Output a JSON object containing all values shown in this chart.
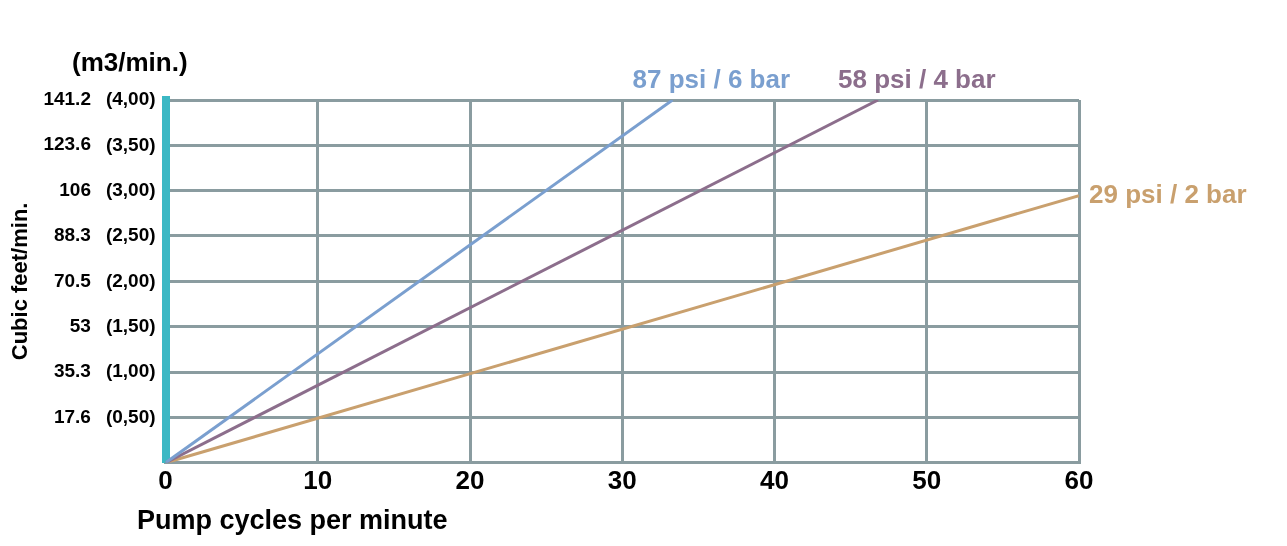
{
  "chart_data": {
    "type": "line",
    "ylabel": "Cubic feet/min.",
    "y2label": "(m3/min.)",
    "xlabel": "Pump cycles per minute",
    "xlim": [
      0,
      60
    ],
    "xticks": [
      0,
      10,
      20,
      30,
      40,
      50,
      60
    ],
    "ylim": [
      0,
      141.2
    ],
    "yticks": [
      17.6,
      35.3,
      53,
      70.5,
      88.3,
      106,
      123.6,
      141.2
    ],
    "y2lim": [
      0,
      4
    ],
    "y2ticks": [
      {
        "value": 0.5,
        "label": "(0,50)"
      },
      {
        "value": 1,
        "label": "(1,00)"
      },
      {
        "value": 1.5,
        "label": "(1,50)"
      },
      {
        "value": 2,
        "label": "(2,00)"
      },
      {
        "value": 2.5,
        "label": "(2,50)"
      },
      {
        "value": 3,
        "label": "(3,00)"
      },
      {
        "value": 3.5,
        "label": "(3,50)"
      },
      {
        "value": 4,
        "label": "(4,00)"
      }
    ],
    "grid": true,
    "legend": false,
    "marker": "none",
    "line_style": "solid",
    "series": [
      {
        "name": "87 psi / 6 bar",
        "color": "#7a9fcf",
        "x": [
          0,
          33.3
        ],
        "values": [
          0,
          141.2
        ]
      },
      {
        "name": "58 psi / 4 bar",
        "color": "#8c6e8c",
        "x": [
          0,
          46.8
        ],
        "values": [
          0,
          141.2
        ]
      },
      {
        "name": "29 psi / 2 bar",
        "color": "#c9a06e",
        "x": [
          0,
          60
        ],
        "values": [
          0,
          104
        ]
      }
    ]
  }
}
